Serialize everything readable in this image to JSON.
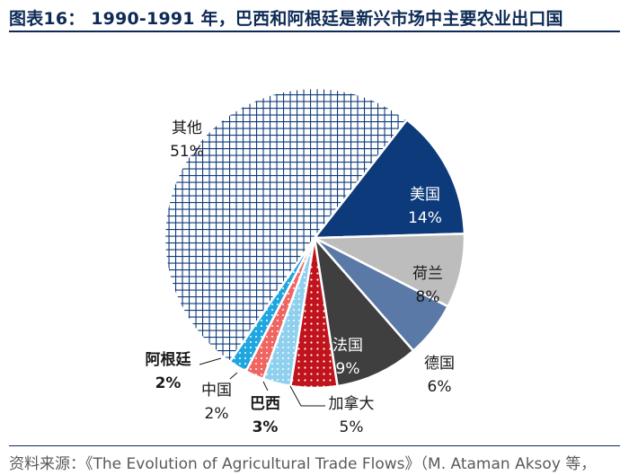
{
  "title": "图表16： 1990-1991 年，巴西和阿根廷是新兴市场中主要农业出口国",
  "source": "资料来源：《The Evolution of Agricultural Trade Flows》（M. Ataman Aksoy 等，",
  "chart_data": {
    "type": "pie",
    "title": "1990-1991 年，巴西和阿根廷是新兴市场中主要农业出口国",
    "slices": [
      {
        "label": "美国",
        "value": 14,
        "value_label": "14%",
        "color": "#0d3a7a",
        "pattern": "solid"
      },
      {
        "label": "荷兰",
        "value": 8,
        "value_label": "8%",
        "color": "#bdbdbd",
        "pattern": "solid"
      },
      {
        "label": "德国",
        "value": 6,
        "value_label": "6%",
        "color": "#5b79a6",
        "pattern": "solid"
      },
      {
        "label": "法国",
        "value": 9,
        "value_label": "9%",
        "color": "#3f3f3f",
        "pattern": "solid"
      },
      {
        "label": "加拿大",
        "value": 5,
        "value_label": "5%",
        "color": "#c0131c",
        "pattern": "dots"
      },
      {
        "label": "巴西",
        "value": 3,
        "value_label": "3%",
        "color": "#8fd0ef",
        "pattern": "dots"
      },
      {
        "label": "中国",
        "value": 2,
        "value_label": "2%",
        "color": "#f06462",
        "pattern": "dots"
      },
      {
        "label": "阿根廷",
        "value": 2,
        "value_label": "2%",
        "color": "#1fa6e0",
        "pattern": "dots"
      },
      {
        "label": "其他",
        "value": 51,
        "value_label": "51%",
        "color": "#0d3a7a",
        "pattern": "grid"
      }
    ]
  }
}
